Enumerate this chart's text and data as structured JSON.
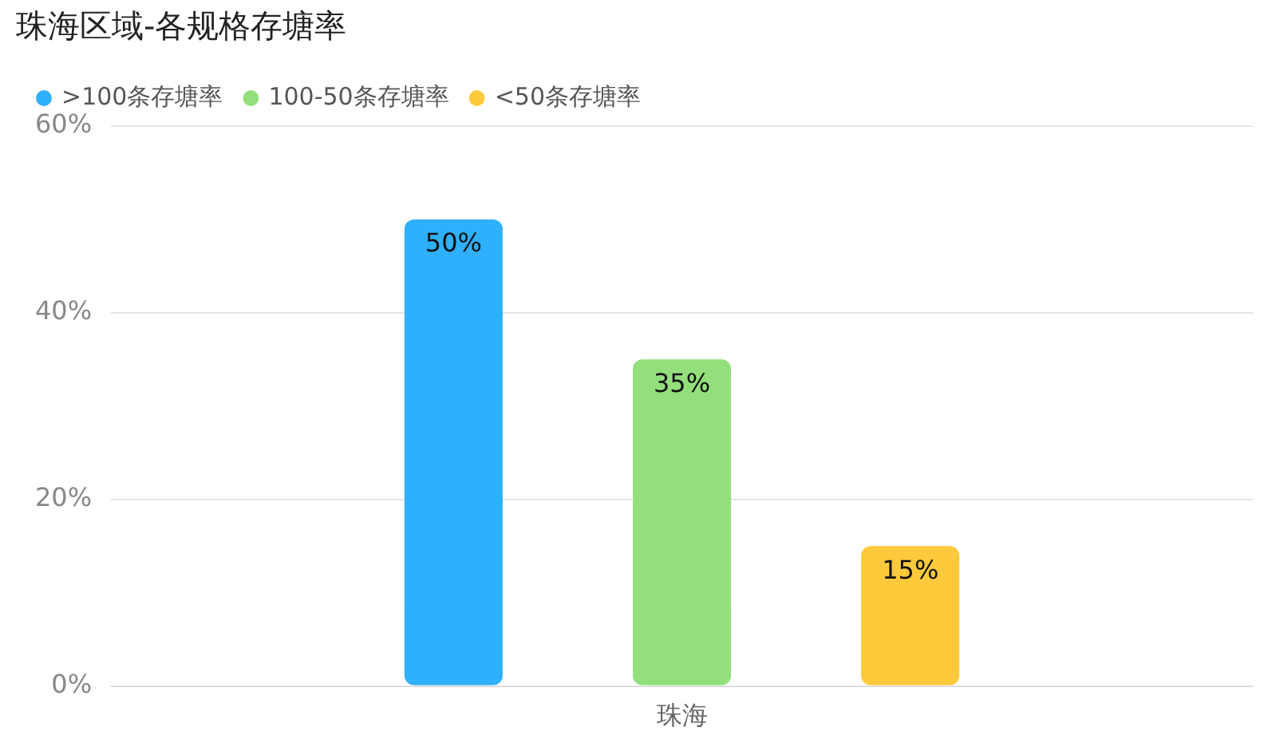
{
  "chart_data": {
    "type": "bar",
    "title": "珠海区域-各规格存塘率",
    "categories": [
      "珠海"
    ],
    "series": [
      {
        "name": ">100条存塘率",
        "color": "#2eb0fd",
        "values": [
          50
        ],
        "value_labels": [
          "50%"
        ]
      },
      {
        "name": "100-50条存塘率",
        "color": "#93df7c",
        "values": [
          35
        ],
        "value_labels": [
          "35%"
        ]
      },
      {
        "name": "<50条存塘率",
        "color": "#ffc93c",
        "values": [
          15
        ],
        "value_labels": [
          "15%"
        ]
      }
    ],
    "ylim": [
      0,
      60
    ],
    "yticks": [
      {
        "value": 0,
        "label": "0%"
      },
      {
        "value": 20,
        "label": "20%"
      },
      {
        "value": 40,
        "label": "40%"
      },
      {
        "value": 60,
        "label": "60%"
      }
    ],
    "grid": "y",
    "legend": "top left"
  }
}
